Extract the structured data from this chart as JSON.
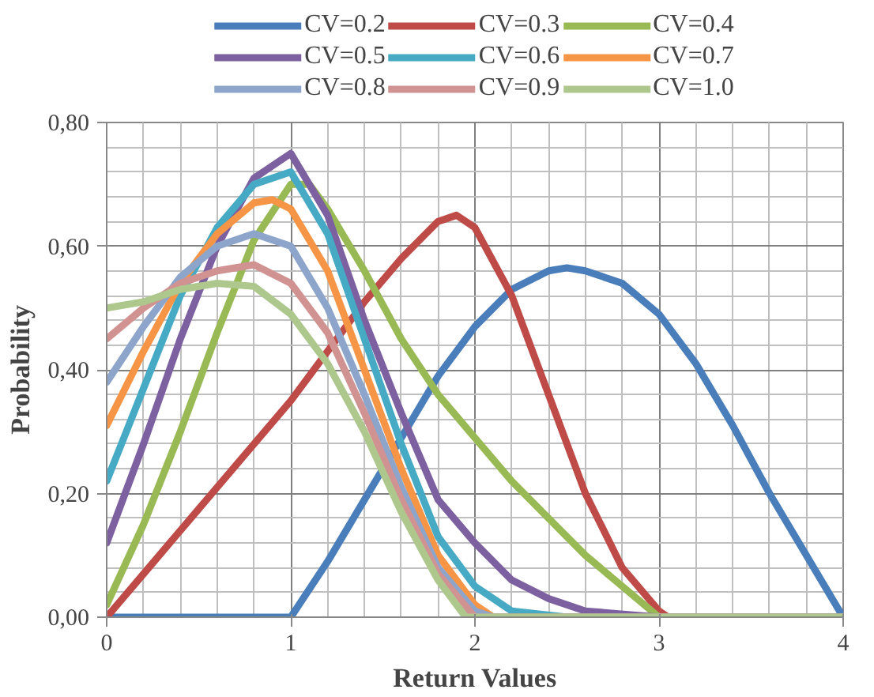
{
  "chart_data": {
    "type": "line",
    "xlabel": "Return Values",
    "ylabel": "Probability",
    "xlim": [
      0,
      4
    ],
    "xticks": [
      0,
      1,
      2,
      3,
      4
    ],
    "ylim": [
      0,
      0.8
    ],
    "yticks": [
      {
        "value": 0,
        "label": "0,00"
      },
      {
        "value": 0.2,
        "label": "0,20"
      },
      {
        "value": 0.4,
        "label": "0,40"
      },
      {
        "value": 0.6,
        "label": "0,60"
      },
      {
        "value": 0.8,
        "label": "0,80"
      }
    ],
    "grid": true,
    "legend": "top",
    "marker": "none",
    "line_style": "solid",
    "series": [
      {
        "name": "CV=0.2",
        "color": "#4a7ebb",
        "x": [
          0,
          0.5,
          1.0,
          1.2,
          1.4,
          1.6,
          1.8,
          2.0,
          2.2,
          2.4,
          2.5,
          2.6,
          2.8,
          3.0,
          3.2,
          3.4,
          3.6,
          3.8,
          4.0
        ],
        "values": [
          0,
          0,
          0,
          0.09,
          0.19,
          0.29,
          0.39,
          0.47,
          0.53,
          0.56,
          0.565,
          0.56,
          0.54,
          0.49,
          0.41,
          0.31,
          0.2,
          0.1,
          0
        ]
      },
      {
        "name": "CV=0.3",
        "color": "#be4b48",
        "x": [
          0,
          0.2,
          0.4,
          0.6,
          0.8,
          1.0,
          1.2,
          1.4,
          1.6,
          1.8,
          1.9,
          2.0,
          2.2,
          2.4,
          2.6,
          2.8,
          3.0,
          3.05,
          4.0
        ],
        "values": [
          0,
          0.07,
          0.14,
          0.21,
          0.28,
          0.35,
          0.43,
          0.51,
          0.58,
          0.64,
          0.65,
          0.63,
          0.52,
          0.36,
          0.2,
          0.08,
          0.01,
          0,
          0
        ]
      },
      {
        "name": "CV=0.4",
        "color": "#98b954",
        "x": [
          0,
          0.2,
          0.4,
          0.6,
          0.8,
          1.0,
          1.1,
          1.2,
          1.4,
          1.6,
          1.8,
          2.0,
          2.2,
          2.4,
          2.6,
          2.8,
          3.0,
          4.0
        ],
        "values": [
          0.02,
          0.15,
          0.3,
          0.46,
          0.61,
          0.7,
          0.7,
          0.66,
          0.56,
          0.45,
          0.36,
          0.29,
          0.22,
          0.16,
          0.1,
          0.05,
          0,
          0
        ]
      },
      {
        "name": "CV=0.5",
        "color": "#7d60a0",
        "x": [
          0,
          0.2,
          0.4,
          0.6,
          0.8,
          1.0,
          1.2,
          1.4,
          1.6,
          1.8,
          2.0,
          2.2,
          2.4,
          2.6,
          3.0,
          4.0
        ],
        "values": [
          0.12,
          0.28,
          0.45,
          0.6,
          0.71,
          0.75,
          0.65,
          0.48,
          0.33,
          0.19,
          0.12,
          0.06,
          0.03,
          0.01,
          0,
          0
        ]
      },
      {
        "name": "CV=0.6",
        "color": "#46aac5",
        "x": [
          0,
          0.2,
          0.4,
          0.6,
          0.8,
          1.0,
          1.2,
          1.4,
          1.6,
          1.8,
          2.0,
          2.2,
          2.5,
          4.0
        ],
        "values": [
          0.22,
          0.37,
          0.52,
          0.63,
          0.7,
          0.72,
          0.62,
          0.45,
          0.28,
          0.13,
          0.05,
          0.01,
          0,
          0
        ]
      },
      {
        "name": "CV=0.7",
        "color": "#f69546",
        "x": [
          0,
          0.2,
          0.4,
          0.6,
          0.8,
          0.9,
          1.0,
          1.2,
          1.4,
          1.6,
          1.8,
          2.0,
          2.1,
          4.0
        ],
        "values": [
          0.31,
          0.43,
          0.54,
          0.62,
          0.67,
          0.675,
          0.66,
          0.56,
          0.4,
          0.24,
          0.1,
          0.02,
          0,
          0
        ]
      },
      {
        "name": "CV=0.8",
        "color": "#8ea5cb",
        "x": [
          0,
          0.2,
          0.4,
          0.6,
          0.8,
          1.0,
          1.2,
          1.4,
          1.6,
          1.8,
          2.0,
          2.1,
          4.0
        ],
        "values": [
          0.38,
          0.47,
          0.55,
          0.6,
          0.62,
          0.6,
          0.5,
          0.36,
          0.21,
          0.08,
          0.01,
          0,
          0
        ]
      },
      {
        "name": "CV=0.9",
        "color": "#d19392",
        "x": [
          0,
          0.2,
          0.4,
          0.6,
          0.8,
          1.0,
          1.2,
          1.4,
          1.6,
          1.8,
          2.0,
          4.0
        ],
        "values": [
          0.45,
          0.5,
          0.54,
          0.56,
          0.57,
          0.54,
          0.46,
          0.33,
          0.19,
          0.07,
          0,
          0
        ]
      },
      {
        "name": "CV=1.0",
        "color": "#adc78d",
        "x": [
          0,
          0.2,
          0.4,
          0.6,
          0.8,
          1.0,
          1.2,
          1.4,
          1.6,
          1.8,
          1.95,
          4.0
        ],
        "values": [
          0.5,
          0.51,
          0.53,
          0.54,
          0.535,
          0.49,
          0.41,
          0.3,
          0.17,
          0.06,
          0,
          0
        ]
      }
    ]
  }
}
